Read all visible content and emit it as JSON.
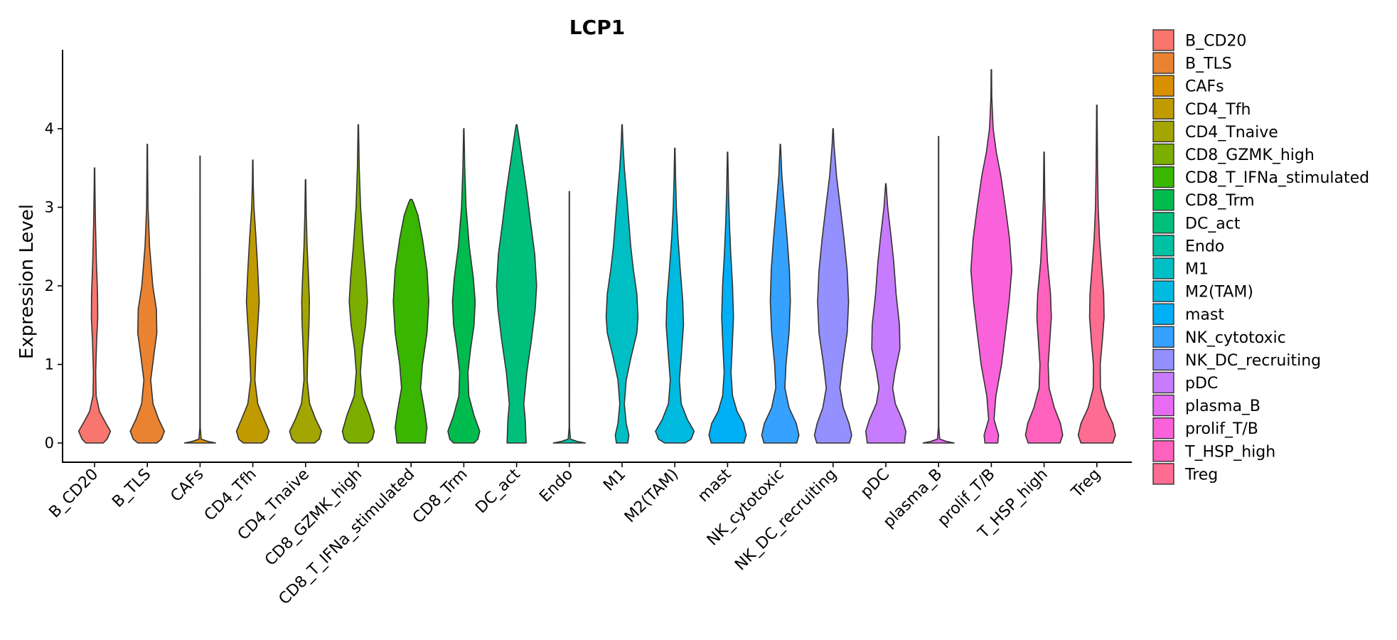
{
  "chart_data": {
    "type": "violin",
    "title": "LCP1",
    "xlabel": "",
    "ylabel": "Expression Level",
    "ylim": [
      -0.15,
      5.0
    ],
    "yticks": [
      "0",
      "1",
      "2",
      "3",
      "4"
    ],
    "grid": false,
    "legend_position": "right",
    "categories": [
      "B_CD20",
      "B_TLS",
      "CAFs",
      "CD4_Tfh",
      "CD4_Tnaive",
      "CD8_GZMK_high",
      "CD8_T_IFNa_stimulated",
      "CD8_Trm",
      "DC_act",
      "Endo",
      "M1",
      "M2(TAM)",
      "mast",
      "NK_cytotoxic",
      "NK_DC_recruiting",
      "pDC",
      "plasma_B",
      "prolif_T/B",
      "T_HSP_high",
      "Treg"
    ],
    "colors": [
      "#F8766D",
      "#EA8331",
      "#D89000",
      "#C09B00",
      "#A3A500",
      "#7CAE00",
      "#39B600",
      "#00BB4E",
      "#00BF7D",
      "#00C1A3",
      "#00BFC4",
      "#00BAE0",
      "#00B0F6",
      "#35A2FF",
      "#9590FF",
      "#C77CFF",
      "#E76BF3",
      "#FA62DB",
      "#FF62BC",
      "#FF6C91"
    ],
    "series": [
      {
        "name": "B_CD20",
        "max": 3.5,
        "profile": [
          [
            0,
            0.38
          ],
          [
            0.05,
            0.55
          ],
          [
            0.15,
            0.7
          ],
          [
            0.25,
            0.5
          ],
          [
            0.4,
            0.22
          ],
          [
            0.6,
            0.07
          ],
          [
            0.9,
            0.05
          ],
          [
            1.3,
            0.09
          ],
          [
            1.6,
            0.14
          ],
          [
            1.9,
            0.13
          ],
          [
            2.3,
            0.08
          ],
          [
            2.8,
            0.04
          ],
          [
            3.2,
            0.02
          ],
          [
            3.5,
            0.01
          ]
        ]
      },
      {
        "name": "B_TLS",
        "max": 3.8,
        "profile": [
          [
            0,
            0.42
          ],
          [
            0.05,
            0.62
          ],
          [
            0.15,
            0.75
          ],
          [
            0.3,
            0.5
          ],
          [
            0.5,
            0.25
          ],
          [
            0.8,
            0.15
          ],
          [
            1.1,
            0.28
          ],
          [
            1.4,
            0.42
          ],
          [
            1.7,
            0.4
          ],
          [
            2.0,
            0.24
          ],
          [
            2.5,
            0.1
          ],
          [
            3.0,
            0.03
          ],
          [
            3.5,
            0.015
          ],
          [
            3.8,
            0.01
          ]
        ]
      },
      {
        "name": "CAFs",
        "max": 3.65,
        "profile": [
          [
            0,
            0.7
          ],
          [
            0.02,
            0.35
          ],
          [
            0.05,
            0.05
          ],
          [
            0.2,
            0.01
          ],
          [
            3.65,
            0.006
          ]
        ]
      },
      {
        "name": "CD4_Tfh",
        "max": 3.6,
        "profile": [
          [
            0,
            0.42
          ],
          [
            0.05,
            0.62
          ],
          [
            0.15,
            0.72
          ],
          [
            0.3,
            0.5
          ],
          [
            0.5,
            0.22
          ],
          [
            0.8,
            0.09
          ],
          [
            1.1,
            0.13
          ],
          [
            1.5,
            0.22
          ],
          [
            1.8,
            0.28
          ],
          [
            2.2,
            0.22
          ],
          [
            2.6,
            0.14
          ],
          [
            3.0,
            0.05
          ],
          [
            3.3,
            0.02
          ],
          [
            3.6,
            0.01
          ]
        ]
      },
      {
        "name": "CD4_Tnaive",
        "max": 3.35,
        "profile": [
          [
            0,
            0.4
          ],
          [
            0.05,
            0.6
          ],
          [
            0.15,
            0.7
          ],
          [
            0.3,
            0.45
          ],
          [
            0.5,
            0.18
          ],
          [
            0.8,
            0.07
          ],
          [
            1.1,
            0.09
          ],
          [
            1.5,
            0.15
          ],
          [
            1.8,
            0.17
          ],
          [
            2.1,
            0.13
          ],
          [
            2.5,
            0.07
          ],
          [
            2.9,
            0.03
          ],
          [
            3.35,
            0.01
          ]
        ]
      },
      {
        "name": "CD8_GZMK_high",
        "max": 4.05,
        "profile": [
          [
            0,
            0.42
          ],
          [
            0.05,
            0.62
          ],
          [
            0.15,
            0.7
          ],
          [
            0.35,
            0.5
          ],
          [
            0.6,
            0.18
          ],
          [
            0.9,
            0.09
          ],
          [
            1.2,
            0.17
          ],
          [
            1.5,
            0.32
          ],
          [
            1.8,
            0.4
          ],
          [
            2.1,
            0.34
          ],
          [
            2.5,
            0.22
          ],
          [
            3.0,
            0.1
          ],
          [
            3.5,
            0.04
          ],
          [
            4.05,
            0.01
          ]
        ]
      },
      {
        "name": "CD8_T_IFNa_stimulated",
        "max": 3.1,
        "profile": [
          [
            0,
            0.62
          ],
          [
            0.2,
            0.7
          ],
          [
            0.4,
            0.6
          ],
          [
            0.7,
            0.42
          ],
          [
            1.0,
            0.5
          ],
          [
            1.4,
            0.7
          ],
          [
            1.8,
            0.78
          ],
          [
            2.2,
            0.7
          ],
          [
            2.6,
            0.5
          ],
          [
            2.9,
            0.3
          ],
          [
            3.05,
            0.12
          ],
          [
            3.1,
            0.04
          ]
        ]
      },
      {
        "name": "CD8_Trm",
        "max": 4.0,
        "profile": [
          [
            0,
            0.45
          ],
          [
            0.05,
            0.62
          ],
          [
            0.15,
            0.7
          ],
          [
            0.35,
            0.45
          ],
          [
            0.6,
            0.22
          ],
          [
            0.9,
            0.18
          ],
          [
            1.2,
            0.3
          ],
          [
            1.5,
            0.45
          ],
          [
            1.8,
            0.5
          ],
          [
            2.1,
            0.42
          ],
          [
            2.5,
            0.24
          ],
          [
            3.0,
            0.1
          ],
          [
            3.5,
            0.04
          ],
          [
            4.0,
            0.01
          ]
        ]
      },
      {
        "name": "DC_act",
        "max": 4.05,
        "profile": [
          [
            0,
            0.42
          ],
          [
            0.3,
            0.38
          ],
          [
            0.5,
            0.32
          ],
          [
            0.9,
            0.45
          ],
          [
            1.3,
            0.65
          ],
          [
            1.7,
            0.82
          ],
          [
            2.0,
            0.88
          ],
          [
            2.4,
            0.8
          ],
          [
            2.8,
            0.62
          ],
          [
            3.2,
            0.45
          ],
          [
            3.6,
            0.25
          ],
          [
            3.9,
            0.1
          ],
          [
            4.05,
            0.02
          ]
        ]
      },
      {
        "name": "Endo",
        "max": 3.2,
        "profile": [
          [
            0,
            0.72
          ],
          [
            0.02,
            0.35
          ],
          [
            0.05,
            0.05
          ],
          [
            0.2,
            0.01
          ],
          [
            3.2,
            0.006
          ]
        ]
      },
      {
        "name": "M1",
        "max": 4.05,
        "profile": [
          [
            0,
            0.25
          ],
          [
            0.1,
            0.3
          ],
          [
            0.25,
            0.18
          ],
          [
            0.5,
            0.1
          ],
          [
            0.8,
            0.18
          ],
          [
            1.1,
            0.4
          ],
          [
            1.4,
            0.65
          ],
          [
            1.6,
            0.7
          ],
          [
            1.9,
            0.65
          ],
          [
            2.2,
            0.5
          ],
          [
            2.5,
            0.38
          ],
          [
            2.8,
            0.3
          ],
          [
            3.1,
            0.22
          ],
          [
            3.5,
            0.1
          ],
          [
            3.8,
            0.04
          ],
          [
            4.05,
            0.01
          ]
        ]
      },
      {
        "name": "M2(TAM)",
        "max": 3.75,
        "profile": [
          [
            0,
            0.45
          ],
          [
            0.05,
            0.72
          ],
          [
            0.15,
            0.85
          ],
          [
            0.3,
            0.55
          ],
          [
            0.5,
            0.28
          ],
          [
            0.8,
            0.2
          ],
          [
            1.1,
            0.28
          ],
          [
            1.5,
            0.38
          ],
          [
            1.8,
            0.35
          ],
          [
            2.2,
            0.24
          ],
          [
            2.6,
            0.14
          ],
          [
            3.0,
            0.07
          ],
          [
            3.4,
            0.03
          ],
          [
            3.75,
            0.01
          ]
        ]
      },
      {
        "name": "mast",
        "max": 3.7,
        "profile": [
          [
            0,
            0.72
          ],
          [
            0.1,
            0.82
          ],
          [
            0.25,
            0.7
          ],
          [
            0.4,
            0.42
          ],
          [
            0.6,
            0.22
          ],
          [
            0.9,
            0.15
          ],
          [
            1.2,
            0.2
          ],
          [
            1.6,
            0.26
          ],
          [
            2.0,
            0.22
          ],
          [
            2.4,
            0.14
          ],
          [
            2.8,
            0.08
          ],
          [
            3.2,
            0.04
          ],
          [
            3.7,
            0.01
          ]
        ]
      },
      {
        "name": "NK_cytotoxic",
        "max": 3.8,
        "profile": [
          [
            0,
            0.72
          ],
          [
            0.1,
            0.82
          ],
          [
            0.25,
            0.7
          ],
          [
            0.45,
            0.38
          ],
          [
            0.7,
            0.2
          ],
          [
            1.0,
            0.25
          ],
          [
            1.4,
            0.38
          ],
          [
            1.8,
            0.44
          ],
          [
            2.2,
            0.4
          ],
          [
            2.6,
            0.3
          ],
          [
            3.0,
            0.18
          ],
          [
            3.4,
            0.07
          ],
          [
            3.8,
            0.01
          ]
        ]
      },
      {
        "name": "NK_DC_recruiting",
        "max": 4.0,
        "profile": [
          [
            0,
            0.72
          ],
          [
            0.1,
            0.82
          ],
          [
            0.25,
            0.7
          ],
          [
            0.45,
            0.45
          ],
          [
            0.7,
            0.3
          ],
          [
            1.0,
            0.42
          ],
          [
            1.4,
            0.62
          ],
          [
            1.8,
            0.68
          ],
          [
            2.2,
            0.62
          ],
          [
            2.6,
            0.48
          ],
          [
            3.0,
            0.32
          ],
          [
            3.4,
            0.15
          ],
          [
            3.8,
            0.04
          ],
          [
            4.0,
            0.01
          ]
        ]
      },
      {
        "name": "pDC",
        "max": 3.3,
        "profile": [
          [
            0,
            0.82
          ],
          [
            0.15,
            0.88
          ],
          [
            0.3,
            0.72
          ],
          [
            0.5,
            0.42
          ],
          [
            0.7,
            0.3
          ],
          [
            0.9,
            0.4
          ],
          [
            1.2,
            0.62
          ],
          [
            1.5,
            0.6
          ],
          [
            1.9,
            0.45
          ],
          [
            2.3,
            0.35
          ],
          [
            2.6,
            0.24
          ],
          [
            3.0,
            0.08
          ],
          [
            3.3,
            0.01
          ]
        ]
      },
      {
        "name": "plasma_B",
        "max": 3.9,
        "profile": [
          [
            0,
            0.7
          ],
          [
            0.02,
            0.35
          ],
          [
            0.05,
            0.05
          ],
          [
            0.2,
            0.01
          ],
          [
            3.9,
            0.006
          ]
        ]
      },
      {
        "name": "prolif_T/B",
        "max": 4.75,
        "profile": [
          [
            0,
            0.28
          ],
          [
            0.1,
            0.32
          ],
          [
            0.3,
            0.12
          ],
          [
            0.6,
            0.2
          ],
          [
            1.0,
            0.45
          ],
          [
            1.4,
            0.62
          ],
          [
            1.8,
            0.78
          ],
          [
            2.2,
            0.9
          ],
          [
            2.6,
            0.8
          ],
          [
            3.0,
            0.62
          ],
          [
            3.4,
            0.42
          ],
          [
            3.7,
            0.22
          ],
          [
            4.0,
            0.08
          ],
          [
            4.4,
            0.02
          ],
          [
            4.75,
            0.01
          ]
        ]
      },
      {
        "name": "T_HSP_high",
        "max": 3.7,
        "profile": [
          [
            0,
            0.7
          ],
          [
            0.1,
            0.82
          ],
          [
            0.25,
            0.72
          ],
          [
            0.45,
            0.45
          ],
          [
            0.7,
            0.22
          ],
          [
            1.0,
            0.18
          ],
          [
            1.3,
            0.25
          ],
          [
            1.6,
            0.32
          ],
          [
            1.9,
            0.28
          ],
          [
            2.3,
            0.15
          ],
          [
            2.7,
            0.08
          ],
          [
            3.1,
            0.03
          ],
          [
            3.7,
            0.01
          ]
        ]
      },
      {
        "name": "Treg",
        "max": 4.3,
        "profile": [
          [
            0,
            0.7
          ],
          [
            0.1,
            0.82
          ],
          [
            0.25,
            0.7
          ],
          [
            0.45,
            0.38
          ],
          [
            0.7,
            0.16
          ],
          [
            1.0,
            0.15
          ],
          [
            1.3,
            0.24
          ],
          [
            1.6,
            0.32
          ],
          [
            1.9,
            0.3
          ],
          [
            2.2,
            0.22
          ],
          [
            2.6,
            0.12
          ],
          [
            3.0,
            0.06
          ],
          [
            3.5,
            0.03
          ],
          [
            4.3,
            0.01
          ]
        ]
      }
    ]
  }
}
